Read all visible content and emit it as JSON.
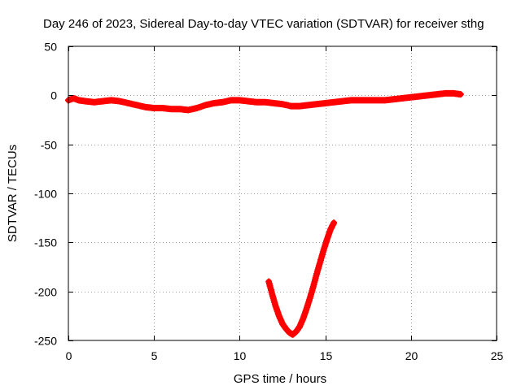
{
  "chart_data": {
    "type": "scatter",
    "title": "Day 246 of 2023, Sidereal Day-to-day VTEC variation (SDTVAR) for receiver sthg",
    "xlabel": "GPS time / hours",
    "ylabel": "SDTVAR / TECUs",
    "xlim": [
      0,
      25
    ],
    "ylim": [
      -250,
      50
    ],
    "xticks": [
      0,
      5,
      10,
      15,
      20,
      25
    ],
    "yticks": [
      -250,
      -200,
      -150,
      -100,
      -50,
      0,
      50
    ],
    "grid": true,
    "marker_color": "#ff0000",
    "series": [
      {
        "name": "main",
        "x": [
          0.0,
          0.3,
          0.6,
          1.0,
          1.5,
          2.0,
          2.5,
          3.0,
          3.5,
          4.0,
          4.5,
          5.0,
          5.5,
          6.0,
          6.5,
          7.0,
          7.5,
          8.0,
          8.5,
          9.0,
          9.5,
          10.0,
          10.5,
          11.0,
          11.5,
          12.0,
          12.5,
          13.0,
          13.5,
          14.0,
          14.5,
          15.0,
          15.5,
          16.0,
          16.5,
          17.0,
          17.5,
          18.0,
          18.5,
          19.0,
          19.5,
          20.0,
          20.5,
          21.0,
          21.5,
          22.0,
          22.5,
          22.9
        ],
        "y": [
          -5,
          -3,
          -5,
          -6,
          -7,
          -6,
          -5,
          -6,
          -8,
          -10,
          -12,
          -13,
          -13,
          -14,
          -14,
          -15,
          -13,
          -10,
          -8,
          -7,
          -5,
          -5,
          -6,
          -7,
          -7,
          -8,
          -9,
          -11,
          -11,
          -10,
          -9,
          -8,
          -7,
          -6,
          -5,
          -5,
          -5,
          -5,
          -5,
          -4,
          -3,
          -2,
          -1,
          0,
          1,
          2,
          2,
          1
        ]
      },
      {
        "name": "excursion",
        "x": [
          11.7,
          11.9,
          12.1,
          12.3,
          12.5,
          12.7,
          12.9,
          13.1,
          13.3,
          13.5,
          13.7,
          13.9,
          14.1,
          14.3,
          14.5,
          14.7,
          14.9,
          15.1,
          15.3,
          15.5
        ],
        "y": [
          -190,
          -203,
          -215,
          -225,
          -233,
          -238,
          -242,
          -244,
          -241,
          -236,
          -228,
          -218,
          -207,
          -195,
          -182,
          -170,
          -158,
          -147,
          -137,
          -130
        ]
      }
    ]
  }
}
